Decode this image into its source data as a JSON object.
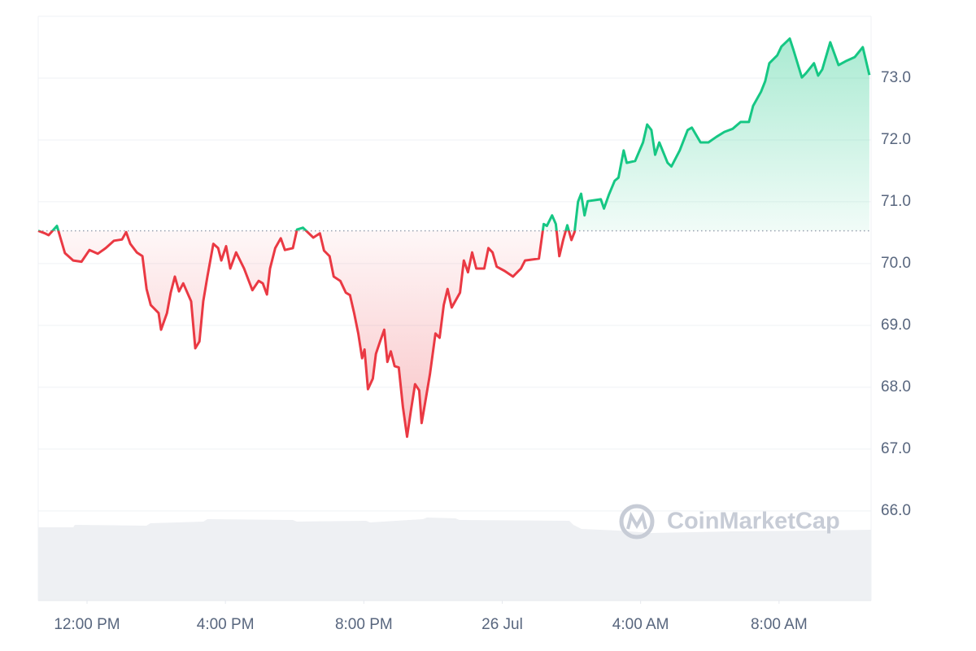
{
  "chart_data": {
    "type": "line",
    "watermark": "CoinMarketCap",
    "reference_value": 70.53,
    "up_color": "#16c784",
    "down_color": "#ea3943",
    "x": [
      -1.41,
      -1.22,
      -1.11,
      -0.87,
      -0.75,
      -0.64,
      -0.4,
      -0.16,
      0.07,
      0.31,
      0.54,
      0.78,
      1.01,
      1.13,
      1.25,
      1.44,
      1.6,
      1.72,
      1.84,
      2.07,
      2.14,
      2.31,
      2.42,
      2.54,
      2.66,
      2.78,
      3.01,
      3.13,
      3.25,
      3.36,
      3.48,
      3.65,
      3.79,
      3.88,
      4.02,
      4.14,
      4.31,
      4.54,
      4.78,
      4.96,
      5.08,
      5.2,
      5.29,
      5.44,
      5.6,
      5.72,
      5.95,
      6.07,
      6.24,
      6.54,
      6.73,
      6.85,
      7.01,
      7.13,
      7.32,
      7.48,
      7.6,
      7.72,
      7.84,
      7.95,
      8.02,
      8.12,
      8.26,
      8.35,
      8.47,
      8.59,
      8.68,
      8.78,
      8.89,
      9.01,
      9.13,
      9.25,
      9.36,
      9.48,
      9.6,
      9.67,
      9.76,
      9.91,
      10.07,
      10.19,
      10.31,
      10.42,
      10.54,
      10.78,
      10.89,
      11.01,
      11.13,
      11.25,
      11.48,
      11.6,
      11.72,
      11.84,
      12.07,
      12.31,
      12.54,
      12.66,
      13.06,
      13.2,
      13.29,
      13.44,
      13.55,
      13.65,
      13.76,
      13.88,
      14.0,
      14.09,
      14.19,
      14.28,
      14.38,
      14.47,
      14.85,
      14.94,
      15.08,
      15.25,
      15.36,
      15.51,
      15.6,
      15.84,
      16.07,
      16.19,
      16.31,
      16.42,
      16.54,
      16.78,
      16.89,
      17.13,
      17.36,
      17.48,
      17.73,
      17.96,
      18.19,
      18.42,
      18.66,
      18.89,
      19.13,
      19.25,
      19.48,
      19.6,
      19.72,
      19.95,
      20.07,
      20.31,
      20.42,
      20.66,
      20.78,
      21.01,
      21.13,
      21.25,
      21.48,
      21.72,
      21.95,
      22.19,
      22.42,
      22.61
    ],
    "values": [
      70.53,
      70.49,
      70.46,
      70.61,
      70.38,
      70.17,
      70.05,
      70.03,
      70.22,
      70.16,
      70.25,
      70.37,
      70.39,
      70.51,
      70.32,
      70.18,
      70.12,
      69.59,
      69.33,
      69.2,
      68.93,
      69.2,
      69.53,
      69.79,
      69.55,
      69.68,
      69.39,
      68.63,
      68.74,
      69.39,
      69.79,
      70.32,
      70.25,
      70.05,
      70.28,
      69.92,
      70.18,
      69.92,
      69.57,
      69.72,
      69.68,
      69.5,
      69.92,
      70.25,
      70.41,
      70.22,
      70.25,
      70.55,
      70.58,
      70.42,
      70.49,
      70.21,
      70.12,
      69.79,
      69.72,
      69.53,
      69.49,
      69.2,
      68.87,
      68.47,
      68.61,
      67.97,
      68.14,
      68.54,
      68.74,
      68.93,
      68.41,
      68.58,
      68.34,
      68.32,
      67.68,
      67.2,
      67.62,
      68.05,
      67.95,
      67.42,
      67.71,
      68.21,
      68.87,
      68.8,
      69.33,
      69.59,
      69.29,
      69.53,
      70.05,
      69.86,
      70.18,
      69.92,
      69.92,
      70.25,
      70.18,
      69.95,
      69.88,
      69.79,
      69.92,
      70.05,
      70.08,
      70.64,
      70.61,
      70.78,
      70.64,
      70.12,
      70.38,
      70.62,
      70.38,
      70.51,
      71.0,
      71.13,
      70.78,
      71.01,
      71.04,
      70.89,
      71.11,
      71.34,
      71.39,
      71.83,
      71.63,
      71.66,
      71.96,
      72.25,
      72.16,
      71.76,
      71.96,
      71.63,
      71.57,
      71.83,
      72.16,
      72.2,
      71.96,
      71.96,
      72.05,
      72.13,
      72.18,
      72.29,
      72.29,
      72.55,
      72.78,
      72.95,
      73.24,
      73.37,
      73.51,
      73.64,
      73.45,
      73.01,
      73.08,
      73.24,
      73.04,
      73.14,
      73.58,
      73.21,
      73.28,
      73.34,
      73.5,
      73.05
    ],
    "xlim": [
      -1.41,
      22.66
    ],
    "xticks": [
      {
        "value": 0,
        "label": "12:00 PM"
      },
      {
        "value": 4,
        "label": "4:00 PM"
      },
      {
        "value": 8,
        "label": "8:00 PM"
      },
      {
        "value": 12,
        "label": "26 Jul"
      },
      {
        "value": 16,
        "label": "4:00 AM"
      },
      {
        "value": 20,
        "label": "8:00 AM"
      }
    ],
    "ylim": [
      64.55,
      74.0
    ],
    "yticks": [
      {
        "value": 66,
        "label": "66.0"
      },
      {
        "value": 67,
        "label": "67.0"
      },
      {
        "value": 68,
        "label": "68.0"
      },
      {
        "value": 69,
        "label": "69.0"
      },
      {
        "value": 70,
        "label": "70.0"
      },
      {
        "value": 71,
        "label": "71.0"
      },
      {
        "value": 72,
        "label": "72.0"
      },
      {
        "value": 73,
        "label": "73.0"
      }
    ],
    "grid": true
  }
}
